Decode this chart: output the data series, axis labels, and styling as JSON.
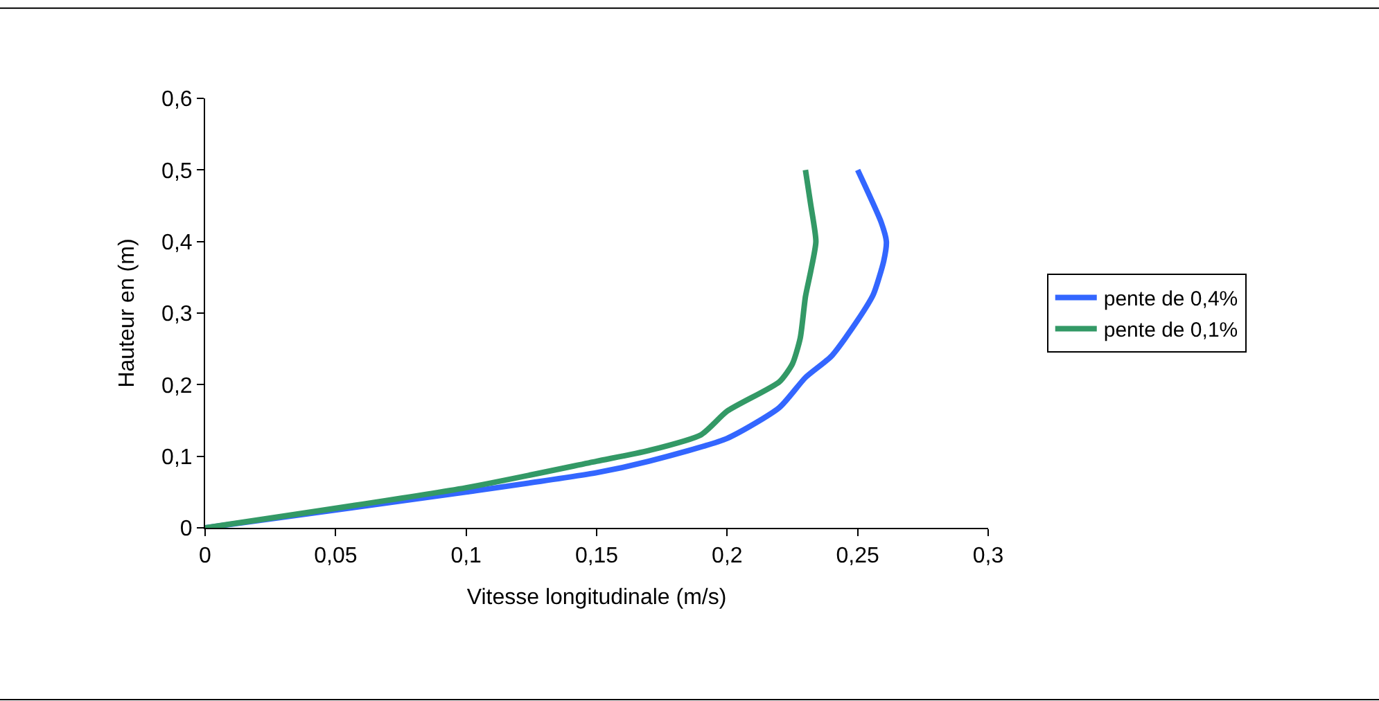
{
  "chart_data": {
    "type": "line",
    "xlabel": "Vitesse longitudinale (m/s)",
    "ylabel": "Hauteur en (m)",
    "xlim": [
      0,
      0.3
    ],
    "xticks": [
      {
        "value": 0,
        "label": "0"
      },
      {
        "value": 0.05,
        "label": "0,05"
      },
      {
        "value": 0.1,
        "label": "0,1"
      },
      {
        "value": 0.15,
        "label": "0,15"
      },
      {
        "value": 0.2,
        "label": "0,2"
      },
      {
        "value": 0.25,
        "label": "0,25"
      },
      {
        "value": 0.3,
        "label": "0,3"
      }
    ],
    "ylim": [
      0,
      0.6
    ],
    "yticks": [
      {
        "value": 0,
        "label": "0"
      },
      {
        "value": 0.1,
        "label": "0,1"
      },
      {
        "value": 0.2,
        "label": "0,2"
      },
      {
        "value": 0.3,
        "label": "0,3"
      },
      {
        "value": 0.4,
        "label": "0,4"
      },
      {
        "value": 0.5,
        "label": "0,5"
      },
      {
        "value": 0.6,
        "label": "0,6"
      }
    ],
    "legend": "right",
    "marker": "none",
    "line_style": "solid",
    "series": [
      {
        "name": "pente de 0,4%",
        "color": "#3366ff",
        "x": [
          0,
          0.1,
          0.15,
          0.17,
          0.2,
          0.22,
          0.23,
          0.24,
          0.25,
          0.256,
          0.26,
          0.261,
          0.259,
          0.25
        ],
        "values": [
          0,
          0.05,
          0.077,
          0.093,
          0.125,
          0.168,
          0.21,
          0.24,
          0.29,
          0.326,
          0.373,
          0.4,
          0.427,
          0.5
        ]
      },
      {
        "name": "pente de 0,1%",
        "color": "#339966",
        "x": [
          0,
          0.1,
          0.15,
          0.17,
          0.19,
          0.2,
          0.22,
          0.225,
          0.228,
          0.23,
          0.232,
          0.234,
          0.232,
          0.23
        ],
        "values": [
          0,
          0.056,
          0.093,
          0.108,
          0.13,
          0.163,
          0.204,
          0.229,
          0.265,
          0.323,
          0.358,
          0.4,
          0.452,
          0.5
        ]
      }
    ]
  }
}
